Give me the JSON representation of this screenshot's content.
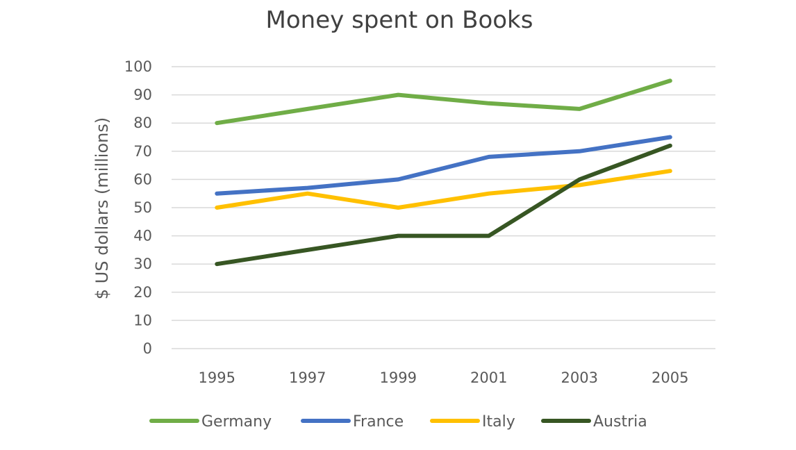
{
  "chart_data": {
    "type": "line",
    "title": "Money spent on Books",
    "xlabel": "",
    "ylabel": "$ US dollars (millions)",
    "ylim": [
      0,
      100
    ],
    "yticks": [
      0,
      10,
      20,
      30,
      40,
      50,
      60,
      70,
      80,
      90,
      100
    ],
    "categories": [
      "1995",
      "1997",
      "1999",
      "2001",
      "2003",
      "2005"
    ],
    "grid": true,
    "legend_position": "bottom",
    "series": [
      {
        "name": "Germany",
        "color": "#70ad47",
        "values": [
          80,
          85,
          90,
          87,
          85,
          95
        ]
      },
      {
        "name": "France",
        "color": "#4472c4",
        "values": [
          55,
          57,
          60,
          68,
          70,
          75
        ]
      },
      {
        "name": "Italy",
        "color": "#ffc000",
        "values": [
          50,
          55,
          50,
          55,
          58,
          63
        ]
      },
      {
        "name": "Austria",
        "color": "#375623",
        "values": [
          30,
          35,
          40,
          40,
          60,
          72
        ]
      }
    ]
  }
}
